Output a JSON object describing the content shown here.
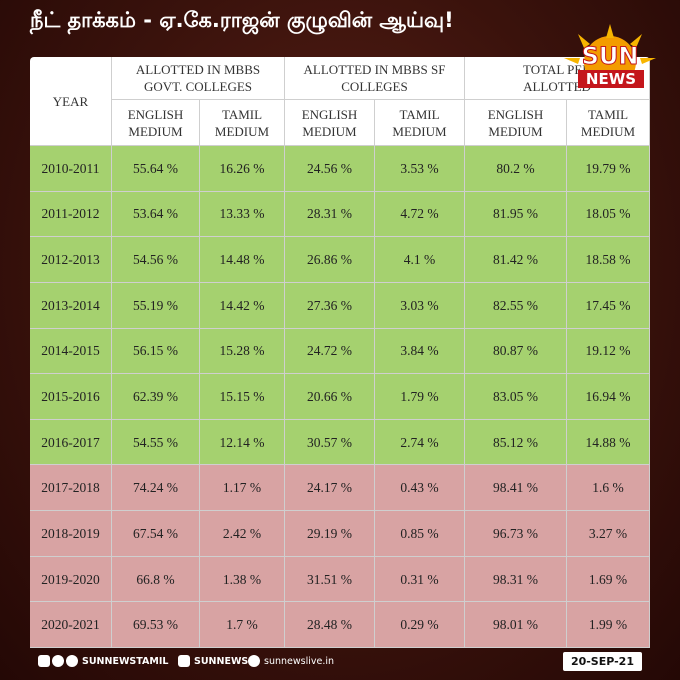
{
  "header": {
    "title": "நீட் தாக்கம் - ஏ.கே.ராஜன் குழுவின் ஆய்வு!"
  },
  "logo": {
    "top": "SUN",
    "bottom": "NEWS"
  },
  "table": {
    "year_header": "YEAR",
    "groups": [
      {
        "lines": [
          "ALLOTTED IN MBBS",
          "GOVT. COLLEGES"
        ]
      },
      {
        "lines": [
          "ALLOTTED IN MBBS SF",
          "COLLEGES"
        ]
      },
      {
        "lines": [
          "TOTAL PER",
          "ALLOTTED"
        ]
      }
    ],
    "sub_headers": [
      [
        "ENGLISH",
        "MEDIUM"
      ],
      [
        "TAMIL",
        "MEDIUM"
      ],
      [
        "ENGLISH",
        "MEDIUM"
      ],
      [
        "TAMIL",
        "MEDIUM"
      ],
      [
        "ENGLISH",
        "MEDIUM"
      ],
      [
        "TAMIL",
        "MEDIUM"
      ]
    ],
    "rows": [
      {
        "color": "#a5d16f",
        "cells": [
          "2010-2011",
          "55.64 %",
          "16.26 %",
          "24.56 %",
          "3.53 %",
          "80.2 %",
          "19.79 %"
        ]
      },
      {
        "color": "#a5d16f",
        "cells": [
          "2011-2012",
          "53.64 %",
          "13.33 %",
          "28.31 %",
          "4.72 %",
          "81.95 %",
          "18.05 %"
        ]
      },
      {
        "color": "#a5d16f",
        "cells": [
          "2012-2013",
          "54.56 %",
          "14.48 %",
          "26.86 %",
          "4.1 %",
          "81.42 %",
          "18.58 %"
        ]
      },
      {
        "color": "#a5d16f",
        "cells": [
          "2013-2014",
          "55.19 %",
          "14.42 %",
          "27.36 %",
          "3.03 %",
          "82.55 %",
          "17.45 %"
        ]
      },
      {
        "color": "#a5d16f",
        "cells": [
          "2014-2015",
          "56.15 %",
          "15.28 %",
          "24.72 %",
          "3.84 %",
          "80.87 %",
          "19.12 %"
        ]
      },
      {
        "color": "#a5d16f",
        "cells": [
          "2015-2016",
          "62.39 %",
          "15.15 %",
          "20.66 %",
          "1.79 %",
          "83.05 %",
          "16.94 %"
        ]
      },
      {
        "color": "#a5d16f",
        "cells": [
          "2016-2017",
          "54.55 %",
          "12.14 %",
          "30.57 %",
          "2.74 %",
          "85.12 %",
          "14.88 %"
        ]
      },
      {
        "color": "#d8a3a3",
        "cells": [
          "2017-2018",
          "74.24 %",
          "1.17 %",
          "24.17 %",
          "0.43 %",
          "98.41 %",
          "1.6 %"
        ]
      },
      {
        "color": "#d8a3a3",
        "cells": [
          "2018-2019",
          "67.54 %",
          "2.42 %",
          "29.19 %",
          "0.85 %",
          "96.73 %",
          "3.27 %"
        ]
      },
      {
        "color": "#d8a3a3",
        "cells": [
          "2019-2020",
          "66.8 %",
          "1.38 %",
          "31.51 %",
          "0.31 %",
          "98.31 %",
          "1.69 %"
        ]
      },
      {
        "color": "#d8a3a3",
        "cells": [
          "2020-2021",
          "69.53 %",
          "1.7 %",
          "28.48 %",
          "0.29 %",
          "98.01 %",
          "1.99 %"
        ]
      }
    ]
  },
  "footer": {
    "youtube_handle": "SUNNEWSTAMIL",
    "instagram_handle": "SUNNEWS",
    "website": "sunnewslive.in",
    "date": "20-SEP-21"
  }
}
